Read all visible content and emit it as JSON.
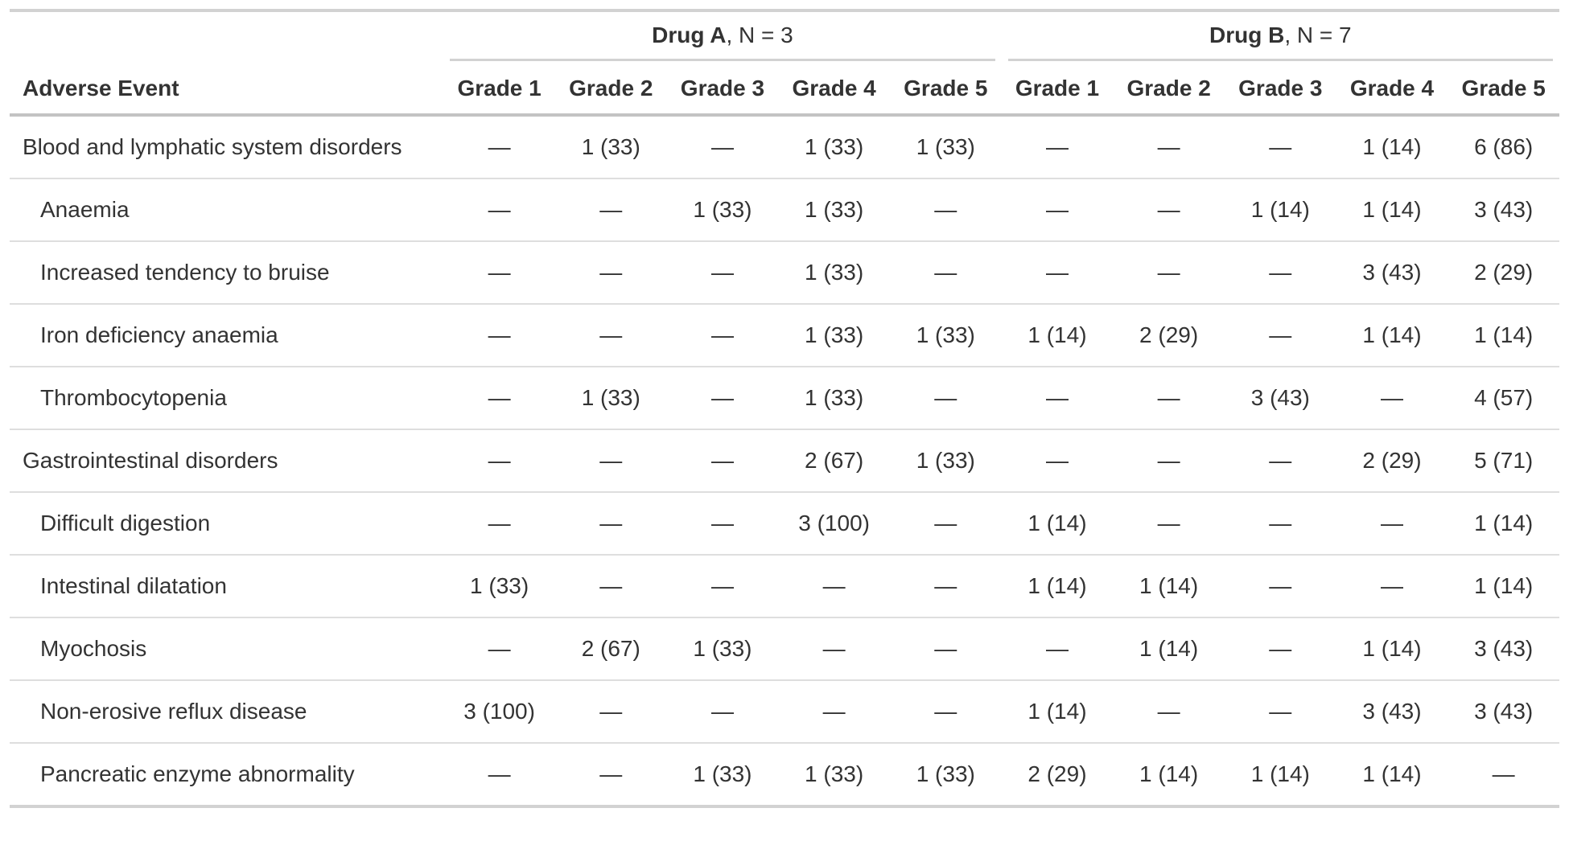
{
  "table": {
    "row_header_label": "Adverse Event",
    "spanners": [
      {
        "drug": "Drug A",
        "n_label": ", N = 3"
      },
      {
        "drug": "Drug B",
        "n_label": ", N = 7"
      }
    ],
    "grade_columns": [
      "Grade 1",
      "Grade 2",
      "Grade 3",
      "Grade 4",
      "Grade 5",
      "Grade 1",
      "Grade 2",
      "Grade 3",
      "Grade 4",
      "Grade 5"
    ],
    "missing_symbol": "—",
    "text_color": "#333333",
    "border_color": "#d2d2d2",
    "rows": [
      {
        "label": "Blood and lymphatic system disorders",
        "indent": false,
        "values": [
          "—",
          "1 (33)",
          "—",
          "1 (33)",
          "1 (33)",
          "—",
          "—",
          "—",
          "1 (14)",
          "6 (86)"
        ]
      },
      {
        "label": "Anaemia",
        "indent": true,
        "values": [
          "—",
          "—",
          "1 (33)",
          "1 (33)",
          "—",
          "—",
          "—",
          "1 (14)",
          "1 (14)",
          "3 (43)"
        ]
      },
      {
        "label": "Increased tendency to bruise",
        "indent": true,
        "values": [
          "—",
          "—",
          "—",
          "1 (33)",
          "—",
          "—",
          "—",
          "—",
          "3 (43)",
          "2 (29)"
        ]
      },
      {
        "label": "Iron deficiency anaemia",
        "indent": true,
        "values": [
          "—",
          "—",
          "—",
          "1 (33)",
          "1 (33)",
          "1 (14)",
          "2 (29)",
          "—",
          "1 (14)",
          "1 (14)"
        ]
      },
      {
        "label": "Thrombocytopenia",
        "indent": true,
        "values": [
          "—",
          "1 (33)",
          "—",
          "1 (33)",
          "—",
          "—",
          "—",
          "3 (43)",
          "—",
          "4 (57)"
        ]
      },
      {
        "label": "Gastrointestinal disorders",
        "indent": false,
        "values": [
          "—",
          "—",
          "—",
          "2 (67)",
          "1 (33)",
          "—",
          "—",
          "—",
          "2 (29)",
          "5 (71)"
        ]
      },
      {
        "label": "Difficult digestion",
        "indent": true,
        "values": [
          "—",
          "—",
          "—",
          "3 (100)",
          "—",
          "1 (14)",
          "—",
          "—",
          "—",
          "1 (14)"
        ]
      },
      {
        "label": "Intestinal dilatation",
        "indent": true,
        "values": [
          "1 (33)",
          "—",
          "—",
          "—",
          "—",
          "1 (14)",
          "1 (14)",
          "—",
          "—",
          "1 (14)"
        ]
      },
      {
        "label": "Myochosis",
        "indent": true,
        "values": [
          "—",
          "2 (67)",
          "1 (33)",
          "—",
          "—",
          "—",
          "1 (14)",
          "—",
          "1 (14)",
          "3 (43)"
        ]
      },
      {
        "label": "Non-erosive reflux disease",
        "indent": true,
        "values": [
          "3 (100)",
          "—",
          "—",
          "—",
          "—",
          "1 (14)",
          "—",
          "—",
          "3 (43)",
          "3 (43)"
        ]
      },
      {
        "label": "Pancreatic enzyme abnormality",
        "indent": true,
        "values": [
          "—",
          "—",
          "1 (33)",
          "1 (33)",
          "1 (33)",
          "2 (29)",
          "1 (14)",
          "1 (14)",
          "1 (14)",
          "—"
        ]
      }
    ]
  }
}
